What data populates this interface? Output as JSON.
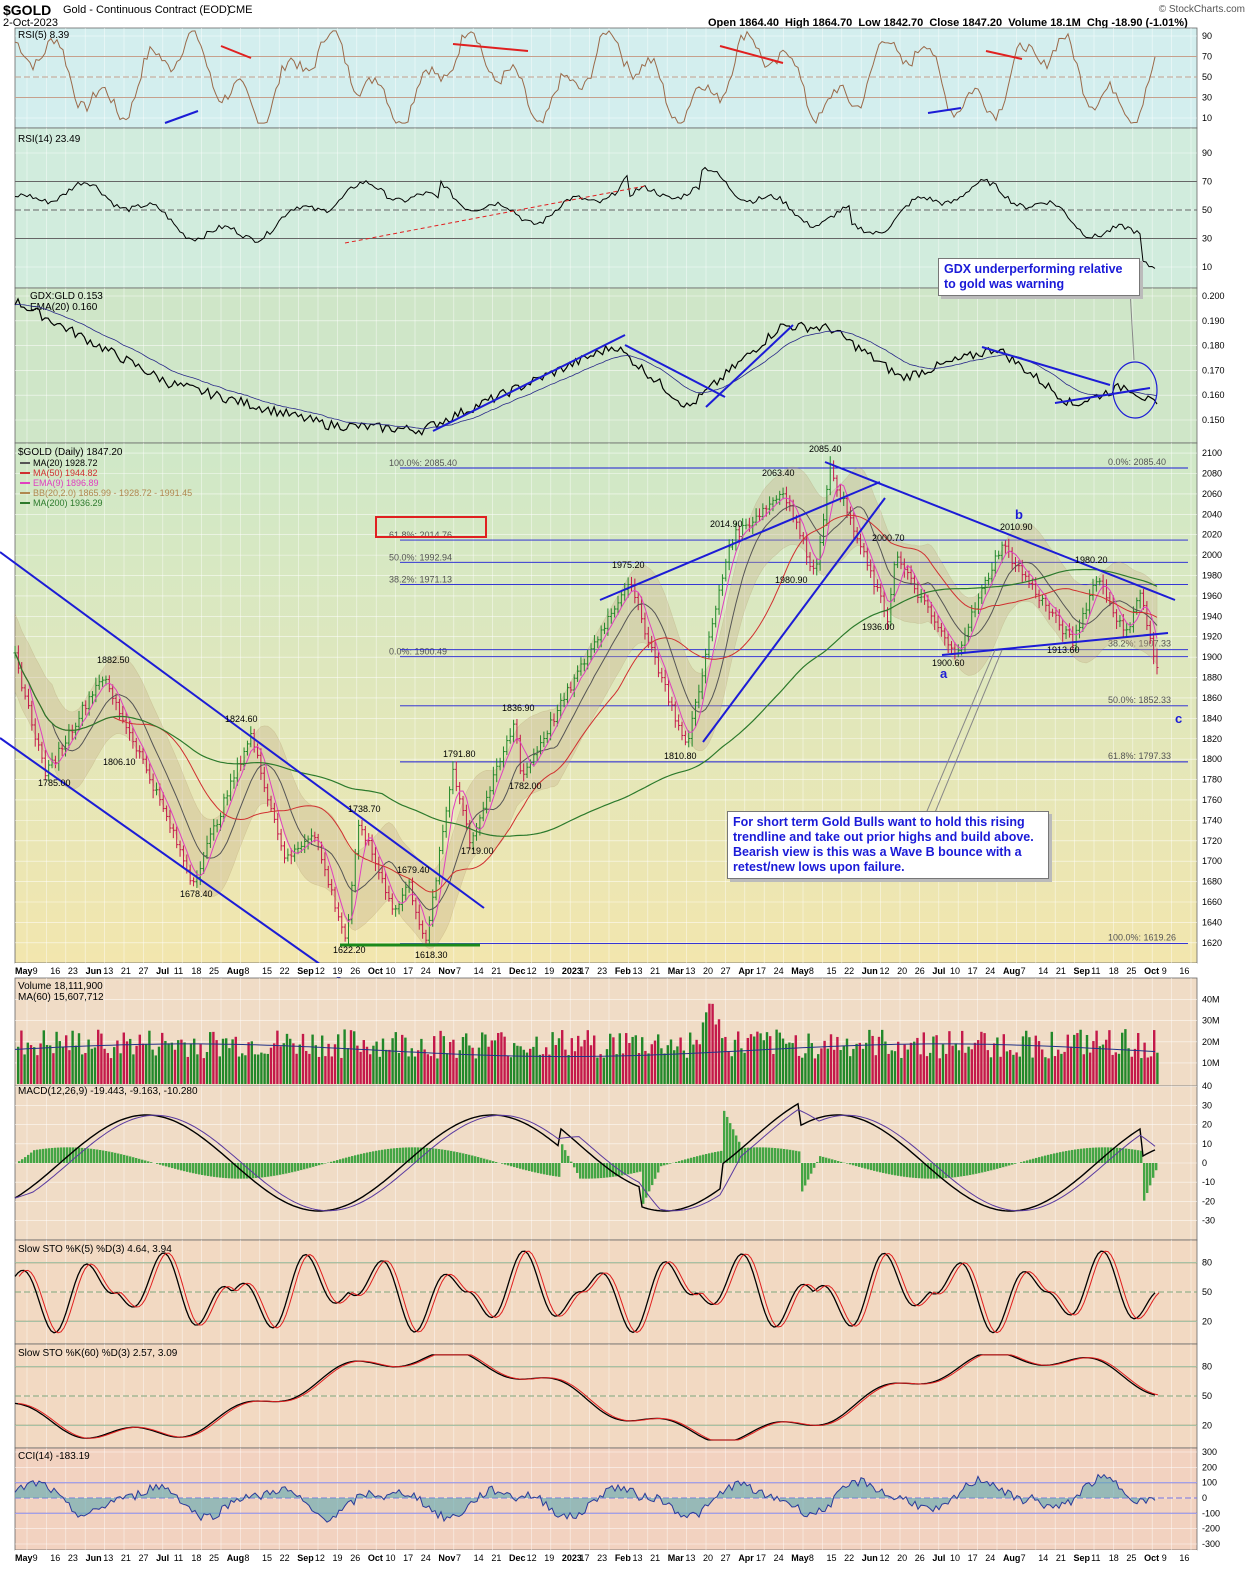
{
  "header": {
    "symbol": "$GOLD",
    "name": "Gold - Continuous Contract (EOD)",
    "exchange": "CME",
    "date": "2-Oct-2023",
    "ohlc": "Open 1864.40  High 1864.70  Low 1842.70  Close 1847.20  Volume 18.1M  Chg -18.90 (-1.01%)",
    "watermark": "© StockCharts.com"
  },
  "colors": {
    "bg_top": "#d9f1f1",
    "bg_bottom": "#f3dcc8",
    "price_up": "#22882a",
    "price_down": "#c4194a",
    "trendline": "#1c1cd6",
    "ma20": "#555555",
    "ma50": "#d03030",
    "ema9": "#e040c0",
    "ma200": "#2c7a2c",
    "bollinger": "#c8b08c"
  },
  "time_axis": {
    "labels": [
      "May",
      "9",
      "16",
      "23",
      "Jun",
      "13",
      "21",
      "27",
      "Jul",
      "11",
      "18",
      "25",
      "Aug",
      "8",
      "15",
      "22",
      "Sep",
      "12",
      "19",
      "26",
      "Oct",
      "10",
      "17",
      "24",
      "Nov",
      "7",
      "14",
      "21",
      "Dec",
      "12",
      "19",
      "2023",
      "17",
      "23",
      "Feb",
      "13",
      "21",
      "Mar",
      "13",
      "20",
      "27",
      "Apr",
      "17",
      "24",
      "May",
      "8",
      "15",
      "22",
      "Jun",
      "12",
      "20",
      "26",
      "Jul",
      "10",
      "17",
      "24",
      "Aug",
      "7",
      "14",
      "21",
      "Sep",
      "11",
      "18",
      "25",
      "Oct",
      "9",
      "16"
    ]
  },
  "panels": {
    "rsi5": {
      "title": "RSI(5) 8.39",
      "ticks": [
        "90",
        "70",
        "50",
        "30",
        "10"
      ]
    },
    "rsi14": {
      "title": "RSI(14) 23.49",
      "ticks": [
        "90",
        "70",
        "50",
        "30",
        "10"
      ]
    },
    "gdx": {
      "title": "GDX:GLD 0.153",
      "ema": "EMA(20) 0.160",
      "ticks": [
        "0.200",
        "0.190",
        "0.180",
        "0.170",
        "0.160",
        "0.150"
      ]
    },
    "price": {
      "title": "$GOLD (Daily) 1847.20",
      "legend": [
        {
          "text": "MA(20) 1928.72",
          "color": "#555555"
        },
        {
          "text": "MA(50) 1944.82",
          "color": "#d03030"
        },
        {
          "text": "EMA(9) 1896.89",
          "color": "#e040c0"
        },
        {
          "text": "BB(20,2.0) 1865.99 - 1928.72 - 1991.45",
          "color": "#b08850"
        },
        {
          "text": "MA(200) 1936.29",
          "color": "#2c7a2c"
        }
      ],
      "ticks": [
        "2100",
        "2080",
        "2060",
        "2040",
        "2020",
        "2000",
        "1980",
        "1960",
        "1940",
        "1920",
        "1900",
        "1880",
        "1860",
        "1840",
        "1820",
        "1800",
        "1780",
        "1760",
        "1740",
        "1720",
        "1700",
        "1680",
        "1660",
        "1640",
        "1620"
      ],
      "fib_left": [
        "100.0%: 2085.40",
        "61.8%: 2014.76",
        "50.0%: 1992.94",
        "38.2%: 1971.13",
        "0.0%: 1900.49"
      ],
      "fib_right": [
        "0.0%: 2085.40",
        "38.2%: 1907.33",
        "50.0%: 1852.33",
        "61.8%: 1797.33",
        "100.0%: 1619.26"
      ],
      "labels": [
        "1882.50",
        "1785.00",
        "1806.10",
        "1824.60",
        "1678.40",
        "1738.70",
        "1679.40",
        "1622.20",
        "1618.30",
        "1791.80",
        "1719.00",
        "1836.90",
        "1782.00",
        "1975.20",
        "1810.80",
        "2014.90",
        "2063.40",
        "1980.90",
        "2085.40",
        "2000.70",
        "1936.00",
        "1900.60",
        "2010.90",
        "1980.20",
        "1913.60"
      ],
      "waves": [
        "a",
        "b",
        "c"
      ]
    },
    "volume": {
      "title": "Volume 18,111,900",
      "ma": "MA(60) 15,607,712",
      "ticks": [
        "40M",
        "30M",
        "20M",
        "10M"
      ]
    },
    "macd": {
      "title": "MACD(12,26,9) -19.443, -9.163, -10.280",
      "ticks": [
        "40",
        "30",
        "20",
        "10",
        "0",
        "-10",
        "-20",
        "-30"
      ]
    },
    "sto5": {
      "title": "Slow STO %K(5) %D(3) 4.64, 3.94",
      "ticks": [
        "80",
        "50",
        "20"
      ]
    },
    "sto60": {
      "title": "Slow STO %K(60) %D(3) 2.57, 3.09",
      "ticks": [
        "80",
        "50",
        "20"
      ]
    },
    "cci": {
      "title": "CCI(14) -183.19",
      "ticks": [
        "300",
        "200",
        "100",
        "0",
        "-100",
        "-200",
        "-300"
      ]
    }
  },
  "annotations": {
    "gdx_note": "GDX underperforming relative to gold was warning",
    "gold_note": "For short term Gold Bulls want to hold this rising trendline and take out prior highs and build above.  Bearish view is this was a Wave B bounce with a retest/new lows upon failure."
  },
  "chart_data": [
    {
      "type": "line",
      "title": "$GOLD (Daily) 1847.20",
      "x_range": [
        "2022-05-02",
        "2023-10-16"
      ],
      "ylim": [
        1610,
        2105
      ],
      "pivots": [
        {
          "date": "2022-05-02",
          "value": 1900
        },
        {
          "date": "2022-05-13",
          "value": 1808
        },
        {
          "date": "2022-05-16",
          "value": 1785.0
        },
        {
          "date": "2022-06-10",
          "value": 1882.5
        },
        {
          "date": "2022-06-27",
          "value": 1806.1
        },
        {
          "date": "2022-07-05",
          "value": 1765
        },
        {
          "date": "2022-07-21",
          "value": 1678.4
        },
        {
          "date": "2022-08-16",
          "value": 1824.6
        },
        {
          "date": "2022-09-01",
          "value": 1700
        },
        {
          "date": "2022-09-13",
          "value": 1730
        },
        {
          "date": "2022-09-28",
          "value": 1622.2
        },
        {
          "date": "2022-10-04",
          "value": 1738.7
        },
        {
          "date": "2022-10-20",
          "value": 1650
        },
        {
          "date": "2022-10-26",
          "value": 1679.4
        },
        {
          "date": "2022-11-03",
          "value": 1618.3
        },
        {
          "date": "2022-11-15",
          "value": 1791.8
        },
        {
          "date": "2022-11-23",
          "value": 1719.0
        },
        {
          "date": "2022-12-13",
          "value": 1836.9
        },
        {
          "date": "2022-12-16",
          "value": 1782.0
        },
        {
          "date": "2023-02-02",
          "value": 1975.2
        },
        {
          "date": "2023-02-28",
          "value": 1810.8
        },
        {
          "date": "2023-03-20",
          "value": 2014.9
        },
        {
          "date": "2023-04-13",
          "value": 2063.4
        },
        {
          "date": "2023-04-27",
          "value": 1980.9
        },
        {
          "date": "2023-05-04",
          "value": 2085.4
        },
        {
          "date": "2023-05-30",
          "value": 1936.0
        },
        {
          "date": "2023-06-02",
          "value": 2000.7
        },
        {
          "date": "2023-06-29",
          "value": 1900.6
        },
        {
          "date": "2023-07-20",
          "value": 2010.9
        },
        {
          "date": "2023-08-21",
          "value": 1913.6
        },
        {
          "date": "2023-09-01",
          "value": 1980.2
        },
        {
          "date": "2023-09-14",
          "value": 1920
        },
        {
          "date": "2023-09-20",
          "value": 1967
        },
        {
          "date": "2023-10-02",
          "value": 1847.2
        }
      ]
    },
    {
      "type": "line",
      "title": "GDX:GLD 0.153",
      "ylim": [
        0.145,
        0.205
      ],
      "pivots": [
        {
          "date": "2022-05-02",
          "value": 0.198
        },
        {
          "date": "2022-07-10",
          "value": 0.165
        },
        {
          "date": "2022-09-20",
          "value": 0.148
        },
        {
          "date": "2022-11-01",
          "value": 0.146
        },
        {
          "date": "2023-01-27",
          "value": 0.18
        },
        {
          "date": "2023-03-01",
          "value": 0.155
        },
        {
          "date": "2023-04-12",
          "value": 0.188
        },
        {
          "date": "2023-05-04",
          "value": 0.187
        },
        {
          "date": "2023-06-05",
          "value": 0.167
        },
        {
          "date": "2023-07-18",
          "value": 0.179
        },
        {
          "date": "2023-08-21",
          "value": 0.156
        },
        {
          "date": "2023-09-14",
          "value": 0.164
        },
        {
          "date": "2023-10-02",
          "value": 0.153
        }
      ]
    }
  ]
}
